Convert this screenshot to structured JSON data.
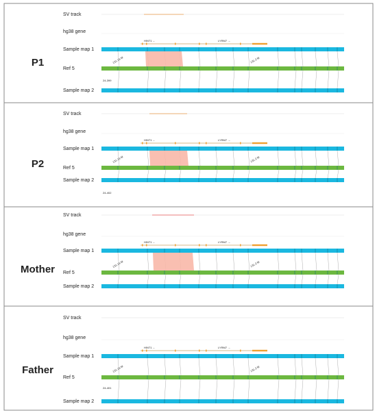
{
  "panels": [
    {
      "label": "P1",
      "sv_track": "SV track",
      "gene_track": "hg38 gene",
      "map1": "Sample map 1",
      "ref": "Ref 5",
      "map2": "Sample map 2",
      "genes": [
        "HINT1 ←",
        "LYRM7 →"
      ],
      "coords": [
        "131.15 M",
        "131.2 M"
      ],
      "sample_id": "24-399"
    },
    {
      "label": "P2",
      "sv_track": "SV track",
      "gene_track": "hg38 gene",
      "map1": "Sample map 1",
      "ref": "Ref 5",
      "map2": "Sample map 2",
      "genes": [
        "HINT1 ←",
        "LYRM7 →"
      ],
      "coords": [
        "131.15 M",
        "131.2 M"
      ],
      "sample_id": "24-402"
    },
    {
      "label": "Mother",
      "sv_track": "SV track",
      "gene_track": "hg38 gene",
      "map1": "Sample map 1",
      "ref": "Ref 5",
      "map2": "Sample map 2",
      "genes": [
        "HINT1 ←",
        "LYRM7 →"
      ],
      "coords": [
        "131.15 M",
        "131.2 M"
      ]
    },
    {
      "label": "Father",
      "sv_track": "SV track",
      "gene_track": "hg38 gene",
      "map1": "Sample map 1",
      "ref": "Ref 5",
      "map2": "Sample map 2",
      "genes": [
        "HINT1 ←",
        "LYRM7 →"
      ],
      "coords": [
        "131.15 M",
        "131.2 M"
      ],
      "sample_id": "24-401"
    }
  ]
}
